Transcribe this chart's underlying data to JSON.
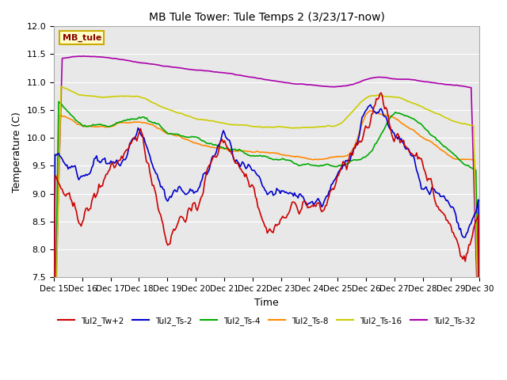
{
  "title": "MB Tule Tower: Tule Temps 2 (3/23/17-now)",
  "xlabel": "Time",
  "ylabel": "Temperature (C)",
  "ylim": [
    7.5,
    12.0
  ],
  "yticks": [
    7.5,
    8.0,
    8.5,
    9.0,
    9.5,
    10.0,
    10.5,
    11.0,
    11.5,
    12.0
  ],
  "bg_color": "#e8e8e8",
  "plot_bg_color": "#e8e8e8",
  "legend_label": "MB_tule",
  "series_colors": {
    "Tul2_Tw+2": "#cc0000",
    "Tul2_Ts-2": "#0000cc",
    "Tul2_Ts-4": "#00aa00",
    "Tul2_Ts-8": "#ff8800",
    "Tul2_Ts-16": "#cccc00",
    "Tul2_Ts-32": "#aa00aa"
  },
  "xtick_labels": [
    "Dec 15",
    "Dec 16",
    "Dec 17",
    "Dec 18",
    "Dec 19",
    "Dec 20",
    "Dec 21",
    "Dec 22",
    "Dec 23",
    "Dec 24",
    "Dec 25",
    "Dec 26",
    "Dec 27",
    "Dec 28",
    "Dec 29",
    "Dec 30"
  ],
  "n_points": 360
}
